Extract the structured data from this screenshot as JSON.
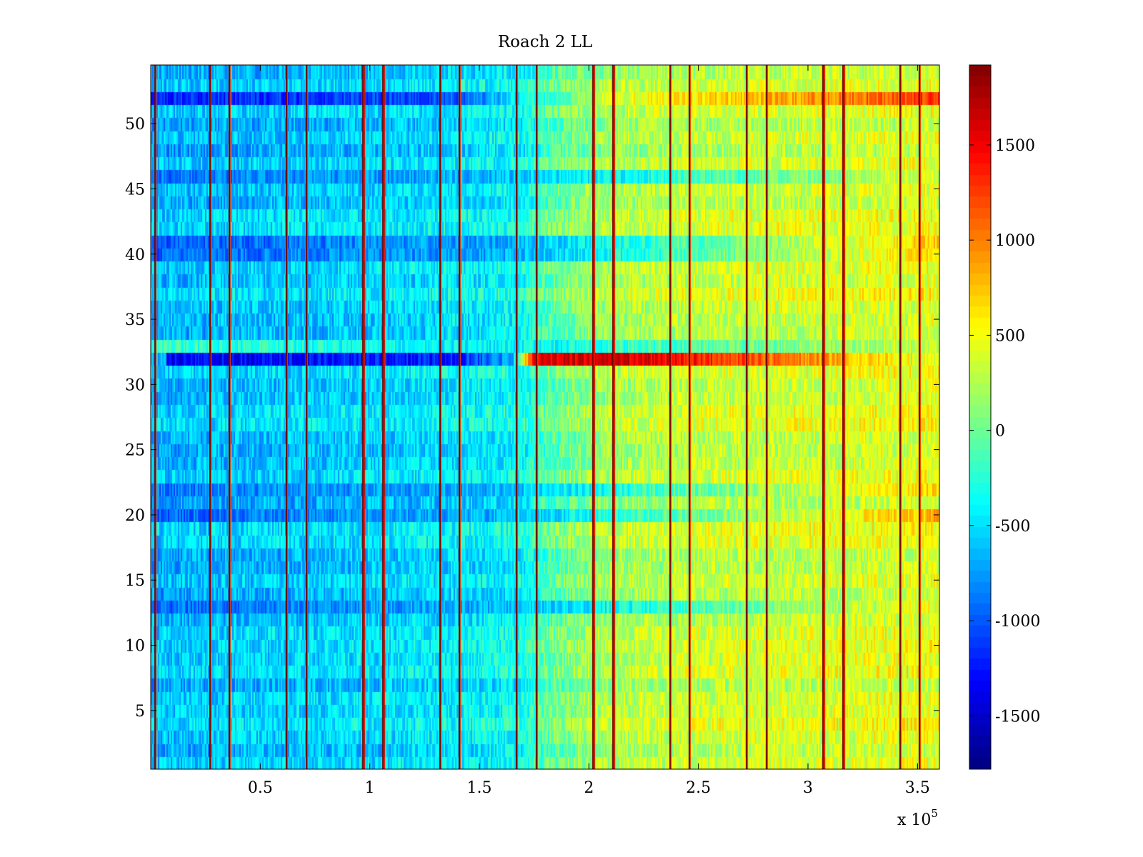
{
  "chart_data": {
    "type": "heatmap",
    "title": "Roach 2 LL",
    "xlabel": "",
    "ylabel": "",
    "x_multiplier_label": "x 10",
    "x_multiplier_exponent": "5",
    "xlim": [
      0,
      3.6
    ],
    "ylim": [
      0.5,
      54.5
    ],
    "x_ticks": [
      0.5,
      1,
      1.5,
      2,
      2.5,
      3,
      3.5
    ],
    "x_tick_labels": [
      "0.5",
      "1",
      "1.5",
      "2",
      "2.5",
      "3",
      "3.5"
    ],
    "y_ticks": [
      5,
      10,
      15,
      20,
      25,
      30,
      35,
      40,
      45,
      50
    ],
    "y_tick_labels": [
      "5",
      "10",
      "15",
      "20",
      "25",
      "30",
      "35",
      "40",
      "45",
      "50"
    ],
    "colormap": "jet",
    "clim": [
      -1780,
      1920
    ],
    "colorbar_ticks": [
      -1500,
      -1000,
      -500,
      0,
      500,
      1000,
      1500
    ],
    "colorbar_tick_labels": [
      "-1500",
      "-1000",
      "-500",
      "0",
      "500",
      "1000",
      "1500"
    ],
    "rows": 54,
    "vertical_stripe_positions": [
      0.02,
      0.27,
      0.36,
      0.62,
      0.71,
      0.97,
      1.06,
      1.32,
      1.41,
      1.67,
      1.76,
      2.02,
      2.11,
      2.37,
      2.46,
      2.72,
      2.81,
      3.07,
      3.16,
      3.42,
      3.51
    ],
    "stripe_value": 1500,
    "baseline_trend": {
      "x": [
        0,
        0.5,
        1.0,
        1.5,
        1.7,
        1.8,
        2.0,
        2.2,
        2.5,
        3.0,
        3.5,
        3.6
      ],
      "value": [
        -650,
        -600,
        -550,
        -450,
        -350,
        -100,
        150,
        250,
        320,
        360,
        420,
        430
      ]
    },
    "special_rows": [
      {
        "row": 52,
        "x": [
          0,
          1.4,
          2.1,
          3.0,
          3.6
        ],
        "value": [
          -1200,
          -1000,
          400,
          900,
          1300
        ]
      },
      {
        "row": 32,
        "x": [
          0.07,
          1.4,
          1.65,
          1.75,
          2.25,
          3.6
        ],
        "value": [
          -1350,
          -1200,
          -700,
          1550,
          1600,
          400
        ]
      },
      {
        "row": 41,
        "x": [
          0,
          1.6,
          3.6
        ],
        "value": [
          -1000,
          -700,
          700
        ]
      },
      {
        "row": 40,
        "x": [
          0,
          1.6,
          3.6
        ],
        "value": [
          -950,
          -700,
          650
        ]
      },
      {
        "row": 46,
        "x": [
          0,
          1.6,
          3.6
        ],
        "value": [
          -900,
          -650,
          400
        ]
      },
      {
        "row": 22,
        "x": [
          0,
          1.6,
          3.6
        ],
        "value": [
          -900,
          -650,
          700
        ]
      },
      {
        "row": 20,
        "x": [
          0,
          1.6,
          3.6
        ],
        "value": [
          -950,
          -650,
          800
        ]
      },
      {
        "row": 13,
        "x": [
          0,
          1.6,
          3.6
        ],
        "value": [
          -950,
          -650,
          500
        ]
      },
      {
        "row": 33,
        "x": [
          0,
          0.8,
          1.6,
          3.6
        ],
        "value": [
          -200,
          -300,
          -450,
          350
        ]
      }
    ]
  }
}
